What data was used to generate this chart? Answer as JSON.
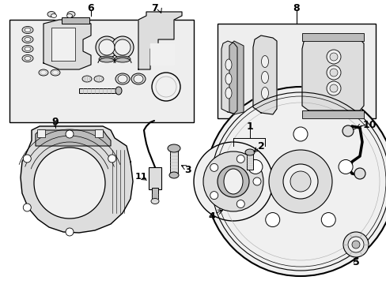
{
  "bg_color": "#ffffff",
  "lc": "#000000",
  "gc": "#aaaaaa",
  "fill_light": "#f0f0f0",
  "fill_mid": "#dddddd",
  "fill_dark": "#bbbbbb",
  "box_fill": "#eeeeee",
  "fig_width": 4.89,
  "fig_height": 3.6,
  "dpi": 100
}
